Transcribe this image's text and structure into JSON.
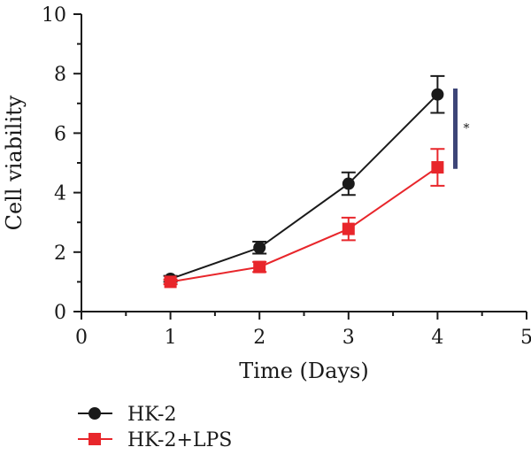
{
  "chart_data": {
    "type": "line",
    "xlabel": "Time (Days)",
    "ylabel": "Cell viability",
    "xlim": [
      0,
      5
    ],
    "ylim": [
      0,
      10
    ],
    "xticks": [
      0,
      1,
      2,
      3,
      4,
      5
    ],
    "yticks": [
      0,
      2,
      4,
      6,
      8,
      10
    ],
    "grid": false,
    "legend_position": "bottom-left",
    "series": [
      {
        "name": "HK-2",
        "color": "#1a1a1a",
        "marker": "circle",
        "x": [
          1,
          2,
          3,
          4
        ],
        "y": [
          1.1,
          2.15,
          4.3,
          7.3
        ],
        "error": [
          0.1,
          0.2,
          0.38,
          0.62
        ]
      },
      {
        "name": "HK-2+LPS",
        "color": "#e8262b",
        "marker": "square",
        "x": [
          1,
          2,
          3,
          4
        ],
        "y": [
          1.0,
          1.5,
          2.78,
          4.85
        ],
        "error": [
          0.08,
          0.17,
          0.38,
          0.62
        ]
      }
    ],
    "annotations": [
      {
        "text": "*",
        "color": "#3d4577",
        "x": 4.2,
        "y_range": [
          4.8,
          7.5
        ]
      }
    ]
  }
}
